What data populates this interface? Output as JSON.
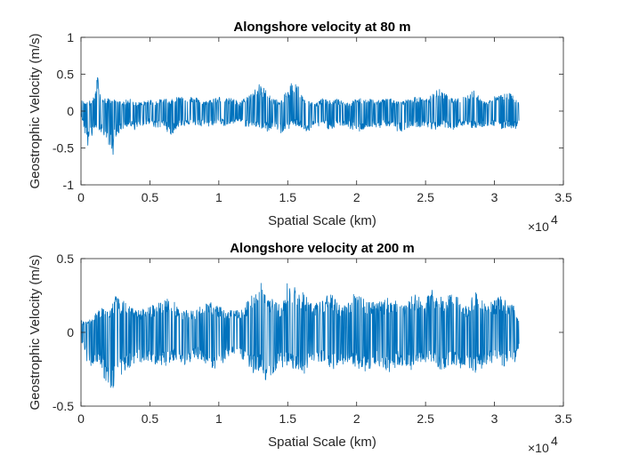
{
  "chart_data": [
    {
      "type": "line",
      "title": "Alongshore velocity at 80 m",
      "xlabel": "Spatial Scale (km)",
      "ylabel": "Geostrophic Velocity (m/s)",
      "xlim": [
        0,
        35000
      ],
      "ylim": [
        -1,
        1
      ],
      "xticks": [
        0,
        5000,
        10000,
        15000,
        20000,
        25000,
        30000,
        35000
      ],
      "xtick_labels": [
        "0",
        "0.5",
        "1",
        "1.5",
        "2",
        "2.5",
        "3",
        "3.5"
      ],
      "x_exponent_base": "×10",
      "x_exponent_power": "4",
      "yticks": [
        -1,
        -0.5,
        0,
        0.5,
        1
      ],
      "ytick_labels": [
        "-1",
        "-0.5",
        "0",
        "0.5",
        "1"
      ],
      "grid": false,
      "color": "#0072BD",
      "series": [
        {
          "x": [
            0,
            500,
            1000,
            1200,
            1500,
            2000,
            2300,
            2500,
            3000,
            3500,
            4000,
            4500,
            5000,
            5500,
            6000,
            6500,
            7000,
            7500,
            8000,
            8500,
            9000,
            9500,
            10000,
            10500,
            11000,
            11500,
            12000,
            12500,
            13000,
            13500,
            14000,
            14500,
            15000,
            15500,
            16000,
            16500,
            17000,
            17500,
            18000,
            18500,
            19000,
            19500,
            20000,
            20500,
            21000,
            21500,
            22000,
            22500,
            23000,
            23500,
            24000,
            24500,
            25000,
            25500,
            26000,
            26500,
            27000,
            27500,
            28000,
            28500,
            29000,
            29500,
            30000,
            30500,
            31000,
            31500,
            31800
          ],
          "upper": [
            0.15,
            0.12,
            0.2,
            0.5,
            0.18,
            0.17,
            0.18,
            0.14,
            0.13,
            0.17,
            0.12,
            0.13,
            0.16,
            0.14,
            0.18,
            0.15,
            0.2,
            0.24,
            0.2,
            0.18,
            0.13,
            0.18,
            0.2,
            0.17,
            0.18,
            0.12,
            0.2,
            0.28,
            0.38,
            0.27,
            0.17,
            0.14,
            0.3,
            0.48,
            0.23,
            0.14,
            0.1,
            0.18,
            0.14,
            0.17,
            0.14,
            0.1,
            0.18,
            0.17,
            0.17,
            0.14,
            0.17,
            0.2,
            0.13,
            0.15,
            0.18,
            0.2,
            0.15,
            0.25,
            0.3,
            0.23,
            0.16,
            0.18,
            0.22,
            0.3,
            0.16,
            0.13,
            0.2,
            0.22,
            0.25,
            0.2,
            0.1
          ],
          "lower": [
            -0.05,
            -0.5,
            -0.25,
            -0.22,
            -0.3,
            -0.45,
            -0.65,
            -0.35,
            -0.25,
            -0.2,
            -0.27,
            -0.2,
            -0.17,
            -0.25,
            -0.2,
            -0.35,
            -0.22,
            -0.2,
            -0.18,
            -0.2,
            -0.23,
            -0.2,
            -0.15,
            -0.22,
            -0.18,
            -0.14,
            -0.22,
            -0.2,
            -0.25,
            -0.28,
            -0.22,
            -0.3,
            -0.25,
            -0.2,
            -0.24,
            -0.3,
            -0.23,
            -0.2,
            -0.25,
            -0.22,
            -0.2,
            -0.24,
            -0.3,
            -0.25,
            -0.22,
            -0.25,
            -0.2,
            -0.22,
            -0.3,
            -0.25,
            -0.2,
            -0.22,
            -0.2,
            -0.28,
            -0.22,
            -0.22,
            -0.25,
            -0.2,
            -0.22,
            -0.24,
            -0.22,
            -0.2,
            -0.22,
            -0.25,
            -0.22,
            -0.25,
            -0.15
          ]
        }
      ]
    },
    {
      "type": "line",
      "title": "Alongshore velocity at 200 m",
      "xlabel": "Spatial Scale (km)",
      "ylabel": "Geostrophic Velocity (m/s)",
      "xlim": [
        0,
        35000
      ],
      "ylim": [
        -0.5,
        0.5
      ],
      "xticks": [
        0,
        5000,
        10000,
        15000,
        20000,
        25000,
        30000,
        35000
      ],
      "xtick_labels": [
        "0",
        "0.5",
        "1",
        "1.5",
        "2",
        "2.5",
        "3",
        "3.5"
      ],
      "x_exponent_base": "×10",
      "x_exponent_power": "4",
      "yticks": [
        -0.5,
        0,
        0.5
      ],
      "ytick_labels": [
        "-0.5",
        "0",
        "0.5"
      ],
      "grid": false,
      "color": "#0072BD",
      "series": [
        {
          "x": [
            0,
            500,
            1000,
            1500,
            2000,
            2300,
            2500,
            3000,
            3500,
            4000,
            4500,
            5000,
            5500,
            6000,
            6500,
            7000,
            7500,
            8000,
            8500,
            9000,
            9500,
            10000,
            10500,
            11000,
            11500,
            12000,
            12500,
            13000,
            13500,
            14000,
            14500,
            15000,
            15500,
            16000,
            16500,
            17000,
            17500,
            18000,
            18500,
            19000,
            19500,
            20000,
            20500,
            21000,
            21500,
            22000,
            22500,
            23000,
            23500,
            24000,
            24500,
            25000,
            25500,
            26000,
            26500,
            27000,
            27500,
            28000,
            28500,
            29000,
            29500,
            30000,
            30500,
            31000,
            31500,
            31800
          ],
          "upper": [
            0.1,
            0.08,
            0.12,
            0.18,
            0.15,
            0.2,
            0.25,
            0.22,
            0.18,
            0.15,
            0.16,
            0.18,
            0.2,
            0.22,
            0.24,
            0.18,
            0.15,
            0.15,
            0.16,
            0.22,
            0.2,
            0.18,
            0.15,
            0.16,
            0.15,
            0.2,
            0.3,
            0.38,
            0.25,
            0.22,
            0.18,
            0.35,
            0.32,
            0.28,
            0.24,
            0.2,
            0.22,
            0.28,
            0.22,
            0.18,
            0.22,
            0.3,
            0.24,
            0.22,
            0.2,
            0.22,
            0.25,
            0.2,
            0.18,
            0.28,
            0.24,
            0.22,
            0.3,
            0.25,
            0.22,
            0.32,
            0.2,
            0.18,
            0.28,
            0.24,
            0.2,
            0.22,
            0.25,
            0.2,
            0.18,
            0.08
          ],
          "lower": [
            -0.05,
            -0.25,
            -0.2,
            -0.3,
            -0.35,
            -0.43,
            -0.32,
            -0.28,
            -0.25,
            -0.22,
            -0.2,
            -0.2,
            -0.22,
            -0.24,
            -0.2,
            -0.18,
            -0.22,
            -0.2,
            -0.18,
            -0.22,
            -0.24,
            -0.26,
            -0.18,
            -0.16,
            -0.18,
            -0.2,
            -0.28,
            -0.26,
            -0.35,
            -0.28,
            -0.24,
            -0.22,
            -0.26,
            -0.3,
            -0.25,
            -0.2,
            -0.22,
            -0.24,
            -0.26,
            -0.22,
            -0.2,
            -0.24,
            -0.28,
            -0.25,
            -0.22,
            -0.25,
            -0.28,
            -0.22,
            -0.24,
            -0.26,
            -0.22,
            -0.2,
            -0.22,
            -0.26,
            -0.24,
            -0.22,
            -0.25,
            -0.22,
            -0.28,
            -0.25,
            -0.22,
            -0.2,
            -0.24,
            -0.22,
            -0.2,
            -0.1
          ]
        }
      ]
    }
  ]
}
